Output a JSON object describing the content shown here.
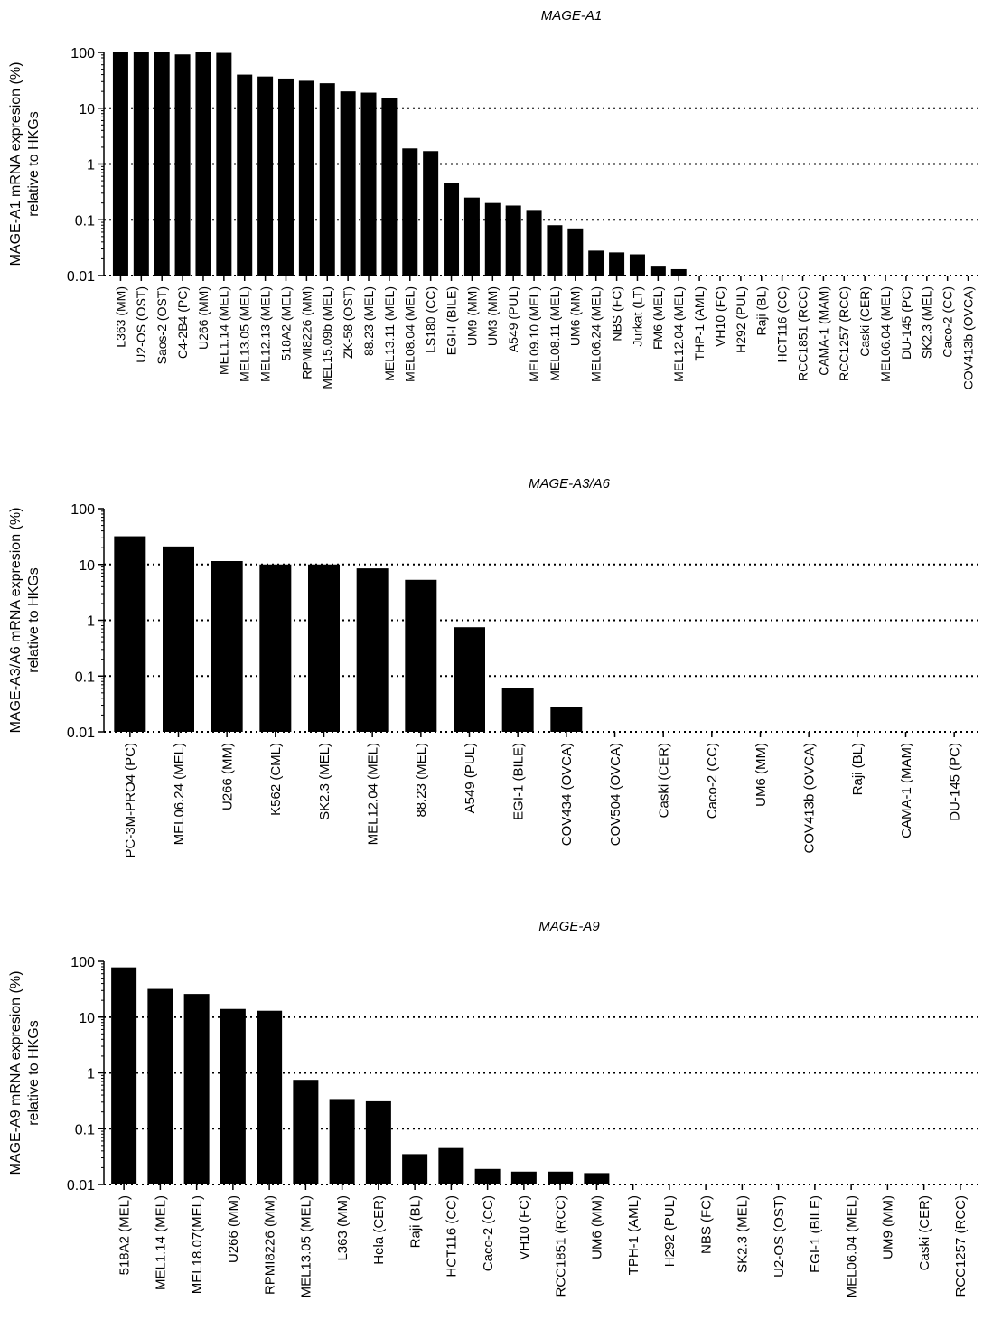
{
  "chart_data": [
    {
      "type": "bar",
      "title": "MAGE-A1",
      "ylabel": [
        "MAGE-A1 mRNA expresion (%)",
        "relative to HKGs"
      ],
      "yscale": "log",
      "ylim": [
        0.01,
        100
      ],
      "yticks": [
        "0.01",
        "0.1",
        "1",
        "10",
        "100"
      ],
      "gridlines": "dotted at 0.1, 1, 10",
      "categories": [
        "L363 (MM)",
        "U2-OS (OST)",
        "Saos-2 (OST)",
        "C4-2B4 (PC)",
        "U266 (MM)",
        "MEL1.14 (MEL)",
        "MEL13.05 (MEL)",
        "MEL12.13 (MEL)",
        "518A2 (MEL)",
        "RPMI8226 (MM)",
        "MEL15.09b (MEL)",
        "ZK-58 (OST)",
        "88.23 (MEL)",
        "MEL13.11 (MEL)",
        "MEL08.04 (MEL)",
        "LS180 (CC)",
        "EGI-I (BILE)",
        "UM9 (MM)",
        "UM3 (MM)",
        "A549 (PUL)",
        "MEL09.10 (MEL)",
        "MEL08.11 (MEL)",
        "UM6 (MM)",
        "MEL06.24 (MEL)",
        "NBS (FC)",
        "Jurkat (LT)",
        "FM6 (MEL)",
        "MEL12.04 (MEL)",
        "THP-1 (AML)",
        "VH10 (FC)",
        "H292 (PUL)",
        "Raji (BL)",
        "HCT116 (CC)",
        "RCC1851 (RCC)",
        "CAMA-1 (MAM)",
        "RCC1257 (RCC)",
        "Caski (CER)",
        "MEL06.04 (MEL)",
        "DU-145 (PC)",
        "SK2.3 (MEL)",
        "Caco-2 (CC)",
        "COV413b (OVCA)"
      ],
      "values": [
        100,
        100,
        100,
        92,
        100,
        98,
        40,
        37,
        34,
        31,
        28,
        20,
        19,
        15,
        1.9,
        1.7,
        0.45,
        0.25,
        0.2,
        0.18,
        0.15,
        0.08,
        0.07,
        0.028,
        0.026,
        0.024,
        0.015,
        0.013,
        0,
        0,
        0,
        0,
        0,
        0,
        0,
        0,
        0,
        0,
        0,
        0,
        0,
        0
      ]
    },
    {
      "type": "bar",
      "title": "MAGE-A3/A6",
      "ylabel": [
        "MAGE-A3/A6 mRNA expresion (%)",
        "relative to HKGs"
      ],
      "yscale": "log",
      "ylim": [
        0.01,
        100
      ],
      "yticks": [
        "0.01",
        "0.1",
        "1",
        "10",
        "100"
      ],
      "gridlines": "dotted at 0.1, 1, 10",
      "categories": [
        "PC-3M-PRO4 (PC)",
        "MEL06.24 (MEL)",
        "U266 (MM)",
        "K562 (CML)",
        "SK2.3 (MEL)",
        "MEL12.04 (MEL)",
        "88.23 (MEL)",
        "A549 (PUL)",
        "EGI-1 (BILE)",
        "COV434 (OVCA)",
        "COV504 (OVCA)",
        "Caski (CER)",
        "Caco-2 (CC)",
        "UM6 (MM)",
        "COV413b (OVCA)",
        "Raji (BL)",
        "CAMA-1 (MAM)",
        "DU-145 (PC)"
      ],
      "values": [
        32,
        21,
        11.5,
        10,
        10,
        8.5,
        5.3,
        0.75,
        0.06,
        0.028,
        0,
        0,
        0,
        0,
        0,
        0,
        0,
        0
      ]
    },
    {
      "type": "bar",
      "title": "MAGE-A9",
      "ylabel": [
        "MAGE-A9 mRNA expresion (%)",
        "relative to HKGs"
      ],
      "yscale": "log",
      "ylim": [
        0.01,
        100
      ],
      "yticks": [
        "0.01",
        "0.1",
        "1",
        "10",
        "100"
      ],
      "gridlines": "dotted at 0.1, 1, 10",
      "categories": [
        "518A2 (MEL)",
        "MEL1.14 (MEL)",
        "MEL18.07(MEL)",
        "U266 (MM)",
        "RPMI8226 (MM)",
        "MEL13.05 (MEL)",
        "L363 (MM)",
        "Hela (CER)",
        "Raji (BL)",
        "HCT116 (CC)",
        "Caco-2 (CC)",
        "VH10 (FC)",
        "RCC1851 (RCC)",
        "UM6 (MM)",
        "TPH-1 (AML)",
        "H292 (PUL)",
        "NBS (FC)",
        "SK2.3 (MEL)",
        "U2-OS (OST)",
        "EGI-1 (BILE)",
        "MEL06.04 (MEL)",
        "UM9 (MM)",
        "Caski (CER)",
        "RCC1257 (RCC)"
      ],
      "values": [
        78,
        32,
        26,
        14,
        13,
        0.75,
        0.34,
        0.31,
        0.035,
        0.045,
        0.019,
        0.017,
        0.017,
        0.016,
        0,
        0,
        0,
        0,
        0,
        0,
        0,
        0,
        0,
        0
      ]
    }
  ]
}
